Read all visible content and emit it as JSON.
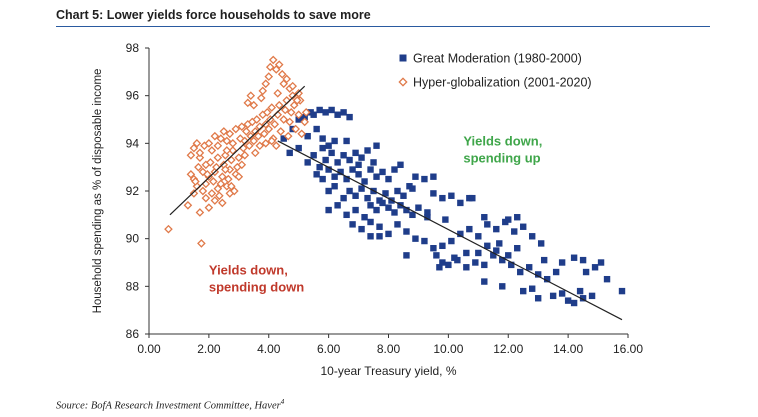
{
  "title": "Chart 5: Lower yields force households to save more",
  "source": "Source: BofA Research Investment Committee, Haver",
  "source_sup": "4",
  "chart_data": {
    "type": "scatter",
    "title": "Chart 5: Lower yields force households to save more",
    "xlabel": "10-year Treasury yield, %",
    "ylabel": "Household spending as % of disposable income",
    "xlim": [
      0,
      16
    ],
    "ylim": [
      86,
      98
    ],
    "xticks": [
      "0.00",
      "2.00",
      "4.00",
      "6.00",
      "8.00",
      "10.00",
      "12.00",
      "14.00",
      "16.00"
    ],
    "yticks": [
      "86",
      "88",
      "90",
      "92",
      "94",
      "96",
      "98"
    ],
    "legend_position": "top-right",
    "grid": false,
    "series": [
      {
        "name": "Great Moderation (1980-2000)",
        "color": "#1f3d8a",
        "marker": "square",
        "points": [
          [
            4.5,
            94.2
          ],
          [
            4.8,
            94.6
          ],
          [
            5.0,
            95.0
          ],
          [
            5.2,
            95.1
          ],
          [
            5.4,
            95.3
          ],
          [
            5.5,
            95.2
          ],
          [
            5.7,
            95.4
          ],
          [
            5.9,
            95.3
          ],
          [
            6.1,
            95.4
          ],
          [
            6.3,
            95.2
          ],
          [
            6.5,
            95.3
          ],
          [
            6.7,
            95.1
          ],
          [
            5.3,
            94.3
          ],
          [
            5.6,
            94.6
          ],
          [
            5.8,
            94.2
          ],
          [
            6.0,
            93.9
          ],
          [
            6.2,
            94.1
          ],
          [
            5.0,
            93.8
          ],
          [
            4.7,
            93.6
          ],
          [
            5.3,
            93.2
          ],
          [
            5.5,
            93.5
          ],
          [
            5.7,
            93.0
          ],
          [
            5.9,
            93.3
          ],
          [
            6.1,
            93.6
          ],
          [
            6.3,
            93.2
          ],
          [
            6.5,
            93.5
          ],
          [
            6.7,
            93.3
          ],
          [
            6.9,
            93.6
          ],
          [
            7.1,
            93.4
          ],
          [
            7.3,
            93.7
          ],
          [
            7.5,
            93.2
          ],
          [
            5.6,
            92.7
          ],
          [
            5.8,
            92.5
          ],
          [
            6.0,
            92.9
          ],
          [
            6.2,
            92.6
          ],
          [
            6.4,
            92.8
          ],
          [
            6.6,
            92.5
          ],
          [
            6.8,
            92.9
          ],
          [
            7.0,
            92.7
          ],
          [
            7.2,
            92.4
          ],
          [
            7.4,
            92.9
          ],
          [
            7.6,
            92.6
          ],
          [
            7.8,
            92.8
          ],
          [
            8.0,
            92.5
          ],
          [
            8.2,
            92.9
          ],
          [
            6.0,
            92.0
          ],
          [
            6.2,
            92.2
          ],
          [
            6.5,
            91.7
          ],
          [
            6.7,
            92.0
          ],
          [
            6.9,
            91.8
          ],
          [
            7.1,
            92.1
          ],
          [
            7.3,
            91.7
          ],
          [
            7.5,
            92.0
          ],
          [
            7.7,
            91.6
          ],
          [
            7.9,
            91.9
          ],
          [
            8.1,
            91.6
          ],
          [
            8.3,
            92.0
          ],
          [
            8.5,
            91.8
          ],
          [
            8.7,
            92.2
          ],
          [
            8.9,
            92.6
          ],
          [
            9.2,
            92.5
          ],
          [
            9.5,
            91.9
          ],
          [
            9.8,
            91.7
          ],
          [
            10.1,
            91.8
          ],
          [
            10.4,
            91.5
          ],
          [
            7.4,
            91.4
          ],
          [
            7.6,
            91.2
          ],
          [
            7.8,
            91.5
          ],
          [
            8.0,
            91.3
          ],
          [
            8.2,
            91.1
          ],
          [
            8.4,
            91.4
          ],
          [
            8.6,
            91.2
          ],
          [
            8.8,
            91.0
          ],
          [
            9.0,
            91.3
          ],
          [
            9.3,
            91.1
          ],
          [
            6.0,
            91.2
          ],
          [
            6.3,
            91.4
          ],
          [
            6.6,
            91.0
          ],
          [
            6.9,
            91.2
          ],
          [
            7.2,
            90.9
          ],
          [
            6.8,
            90.6
          ],
          [
            7.1,
            90.4
          ],
          [
            7.4,
            90.7
          ],
          [
            7.7,
            90.5
          ],
          [
            8.0,
            90.2
          ],
          [
            8.3,
            90.6
          ],
          [
            8.6,
            90.3
          ],
          [
            8.9,
            90.0
          ],
          [
            9.2,
            89.9
          ],
          [
            9.5,
            89.6
          ],
          [
            9.8,
            89.7
          ],
          [
            10.1,
            89.9
          ],
          [
            10.4,
            90.2
          ],
          [
            10.7,
            90.4
          ],
          [
            11.0,
            90.1
          ],
          [
            11.3,
            90.6
          ],
          [
            11.6,
            90.4
          ],
          [
            11.9,
            90.7
          ],
          [
            12.2,
            90.3
          ],
          [
            12.5,
            90.5
          ],
          [
            12.8,
            90.1
          ],
          [
            13.1,
            89.8
          ],
          [
            7.4,
            90.1
          ],
          [
            7.7,
            90.1
          ],
          [
            9.6,
            89.3
          ],
          [
            9.8,
            89.0
          ],
          [
            10.0,
            88.9
          ],
          [
            10.3,
            89.1
          ],
          [
            10.6,
            88.8
          ],
          [
            10.9,
            89.0
          ],
          [
            11.2,
            88.9
          ],
          [
            11.5,
            89.3
          ],
          [
            11.8,
            89.1
          ],
          [
            12.1,
            88.9
          ],
          [
            12.4,
            88.6
          ],
          [
            12.7,
            88.8
          ],
          [
            13.0,
            88.5
          ],
          [
            13.3,
            88.3
          ],
          [
            13.6,
            88.6
          ],
          [
            11.0,
            89.4
          ],
          [
            11.3,
            89.7
          ],
          [
            11.6,
            89.5
          ],
          [
            12.0,
            89.3
          ],
          [
            12.3,
            89.6
          ],
          [
            11.2,
            88.2
          ],
          [
            11.8,
            88.0
          ],
          [
            12.5,
            87.8
          ],
          [
            13.0,
            87.5
          ],
          [
            12.8,
            87.9
          ],
          [
            13.5,
            87.6
          ],
          [
            14.0,
            87.4
          ],
          [
            14.2,
            87.3
          ],
          [
            14.5,
            87.5
          ],
          [
            14.8,
            87.6
          ],
          [
            13.8,
            87.7
          ],
          [
            14.4,
            87.8
          ],
          [
            14.6,
            88.6
          ],
          [
            14.9,
            88.8
          ],
          [
            15.3,
            88.3
          ],
          [
            15.8,
            87.8
          ],
          [
            13.2,
            89.1
          ],
          [
            13.8,
            89.0
          ],
          [
            14.2,
            89.2
          ],
          [
            14.5,
            89.1
          ],
          [
            15.1,
            89.0
          ],
          [
            12.0,
            90.8
          ],
          [
            12.3,
            90.9
          ],
          [
            11.7,
            89.8
          ],
          [
            10.6,
            89.4
          ],
          [
            10.2,
            89.2
          ],
          [
            9.3,
            90.9
          ],
          [
            10.7,
            91.7
          ],
          [
            11.2,
            90.9
          ],
          [
            9.9,
            90.8
          ],
          [
            5.8,
            93.8
          ],
          [
            6.6,
            94.1
          ],
          [
            7.0,
            93.1
          ],
          [
            7.6,
            93.9
          ],
          [
            8.4,
            93.1
          ],
          [
            8.8,
            92.1
          ],
          [
            9.5,
            92.6
          ],
          [
            10.8,
            91.7
          ],
          [
            8.6,
            89.3
          ],
          [
            9.7,
            88.8
          ]
        ]
      },
      {
        "name": "Hyper-globalization (2001-2020)",
        "color": "#e07a4a",
        "marker": "diamond",
        "points": [
          [
            0.65,
            90.4
          ],
          [
            1.4,
            92.7
          ],
          [
            1.5,
            92.5
          ],
          [
            1.7,
            93.4
          ],
          [
            1.6,
            92.2
          ],
          [
            1.8,
            92.8
          ],
          [
            1.9,
            93.1
          ],
          [
            1.75,
            89.8
          ],
          [
            1.3,
            91.4
          ],
          [
            1.5,
            91.9
          ],
          [
            1.55,
            92.4
          ],
          [
            1.65,
            93.0
          ],
          [
            1.8,
            92.0
          ],
          [
            1.9,
            92.3
          ],
          [
            2.0,
            92.6
          ],
          [
            2.05,
            93.2
          ],
          [
            2.1,
            91.9
          ],
          [
            2.15,
            92.4
          ],
          [
            2.2,
            92.8
          ],
          [
            2.25,
            93.0
          ],
          [
            2.3,
            93.4
          ],
          [
            2.35,
            91.8
          ],
          [
            2.4,
            92.3
          ],
          [
            2.45,
            92.6
          ],
          [
            2.5,
            93.1
          ],
          [
            2.55,
            93.5
          ],
          [
            2.6,
            92.2
          ],
          [
            2.65,
            92.5
          ],
          [
            2.7,
            92.9
          ],
          [
            2.75,
            93.3
          ],
          [
            2.8,
            93.7
          ],
          [
            2.85,
            92.0
          ],
          [
            2.9,
            92.7
          ],
          [
            2.95,
            93.0
          ],
          [
            3.0,
            93.4
          ],
          [
            1.4,
            93.5
          ],
          [
            1.5,
            93.8
          ],
          [
            1.6,
            94.0
          ],
          [
            1.7,
            93.6
          ],
          [
            1.85,
            93.9
          ],
          [
            2.0,
            94.0
          ],
          [
            2.1,
            93.7
          ],
          [
            2.2,
            94.3
          ],
          [
            2.3,
            93.9
          ],
          [
            2.4,
            94.2
          ],
          [
            2.5,
            94.5
          ],
          [
            2.6,
            94.1
          ],
          [
            2.7,
            94.4
          ],
          [
            2.8,
            94.0
          ],
          [
            2.9,
            94.6
          ],
          [
            3.05,
            94.2
          ],
          [
            3.1,
            94.7
          ],
          [
            3.15,
            93.8
          ],
          [
            3.2,
            94.1
          ],
          [
            3.25,
            94.5
          ],
          [
            3.3,
            94.8
          ],
          [
            3.4,
            94.3
          ],
          [
            3.45,
            94.9
          ],
          [
            3.5,
            94.1
          ],
          [
            3.55,
            94.5
          ],
          [
            3.6,
            95.0
          ],
          [
            3.65,
            94.3
          ],
          [
            3.7,
            94.7
          ],
          [
            3.8,
            95.2
          ],
          [
            3.85,
            94.4
          ],
          [
            3.9,
            94.8
          ],
          [
            3.95,
            95.3
          ],
          [
            4.0,
            94.6
          ],
          [
            4.05,
            95.0
          ],
          [
            4.1,
            95.5
          ],
          [
            4.15,
            94.2
          ],
          [
            4.2,
            94.8
          ],
          [
            4.3,
            95.2
          ],
          [
            4.35,
            95.6
          ],
          [
            4.4,
            94.5
          ],
          [
            4.5,
            95.0
          ],
          [
            4.55,
            95.4
          ],
          [
            4.6,
            95.8
          ],
          [
            4.65,
            94.3
          ],
          [
            4.7,
            94.9
          ],
          [
            4.75,
            95.3
          ],
          [
            4.8,
            96.0
          ],
          [
            4.85,
            95.6
          ],
          [
            4.9,
            94.6
          ],
          [
            5.0,
            95.2
          ],
          [
            5.05,
            95.8
          ],
          [
            5.1,
            94.4
          ],
          [
            5.2,
            94.9
          ],
          [
            3.75,
            95.9
          ],
          [
            3.8,
            96.2
          ],
          [
            3.9,
            96.5
          ],
          [
            4.0,
            96.8
          ],
          [
            4.05,
            97.2
          ],
          [
            4.15,
            97.5
          ],
          [
            4.25,
            97.1
          ],
          [
            4.35,
            97.3
          ],
          [
            4.45,
            96.9
          ],
          [
            4.5,
            96.5
          ],
          [
            4.6,
            96.7
          ],
          [
            4.7,
            96.3
          ],
          [
            3.3,
            95.7
          ],
          [
            3.4,
            96.0
          ],
          [
            3.5,
            95.6
          ],
          [
            4.3,
            96.1
          ],
          [
            4.8,
            96.4
          ],
          [
            5.0,
            96.1
          ],
          [
            4.95,
            95.8
          ],
          [
            5.25,
            95.3
          ],
          [
            3.2,
            93.5
          ],
          [
            3.35,
            93.9
          ],
          [
            2.6,
            93.7
          ],
          [
            2.2,
            91.6
          ],
          [
            2.0,
            91.3
          ],
          [
            1.9,
            91.7
          ],
          [
            1.7,
            91.1
          ],
          [
            2.45,
            91.5
          ],
          [
            2.7,
            91.9
          ],
          [
            3.0,
            92.6
          ],
          [
            3.1,
            93.1
          ],
          [
            3.55,
            93.6
          ],
          [
            3.7,
            93.9
          ],
          [
            3.9,
            94.0
          ],
          [
            4.1,
            94.1
          ],
          [
            4.25,
            93.9
          ],
          [
            2.3,
            92.1
          ],
          [
            1.95,
            92.7
          ],
          [
            2.55,
            92.9
          ],
          [
            2.75,
            92.2
          ]
        ]
      }
    ],
    "trendlines": [
      {
        "from": [
          0.7,
          91.0
        ],
        "to": [
          5.2,
          96.4
        ]
      },
      {
        "from": [
          4.3,
          94.1
        ],
        "to": [
          15.8,
          86.6
        ]
      }
    ],
    "annotations": [
      {
        "lines": [
          "Yields down,",
          "spending up"
        ],
        "color": "#3fa64a",
        "at": [
          10.5,
          93.9
        ]
      },
      {
        "lines": [
          "Yields down,",
          "spending down"
        ],
        "color": "#c0392b",
        "at": [
          2.0,
          88.5
        ]
      }
    ]
  }
}
